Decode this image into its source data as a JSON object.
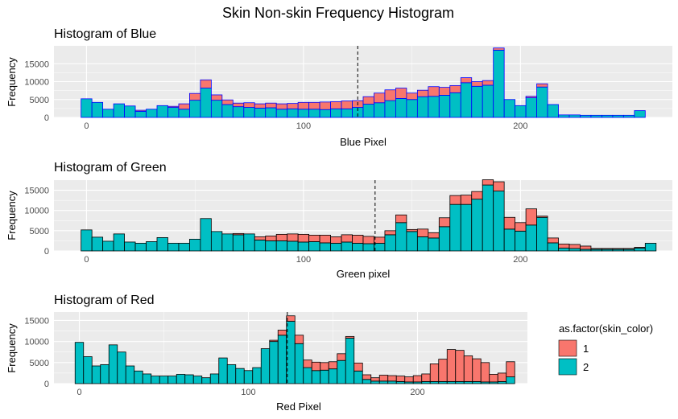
{
  "title": "Skin Non-skin Frequency Histogram",
  "colors": {
    "class1": "#F8766D",
    "class2": "#00BFC4",
    "panel_bg": "#EBEBEB",
    "grid": "#FFFFFF"
  },
  "legend": {
    "title": "as.factor(skin_color)",
    "items": [
      {
        "label": "1",
        "color": "#F8766D"
      },
      {
        "label": "2",
        "color": "#00BFC4"
      }
    ]
  },
  "chart_data": [
    {
      "type": "bar",
      "stacked": true,
      "title": "Histogram of Blue",
      "xlabel": "Blue Pixel",
      "ylabel": "Frequency",
      "bin_width": 5,
      "xlim": [
        -15,
        270
      ],
      "ylim": [
        0,
        20000
      ],
      "x_ticks": [
        0,
        100,
        200
      ],
      "y_ticks": [
        0,
        5000,
        10000,
        15000
      ],
      "bar_outline": "#0000FF",
      "vline": 125,
      "bins": [
        0,
        5,
        10,
        15,
        20,
        25,
        30,
        35,
        40,
        45,
        50,
        55,
        60,
        65,
        70,
        75,
        80,
        85,
        90,
        95,
        100,
        105,
        110,
        115,
        120,
        125,
        130,
        135,
        140,
        145,
        150,
        155,
        160,
        165,
        170,
        175,
        180,
        185,
        190,
        195,
        200,
        205,
        210,
        215,
        220,
        225,
        230,
        235,
        240,
        245,
        250,
        255
      ],
      "series": [
        {
          "name": "2",
          "values": [
            5200,
            4200,
            2300,
            3800,
            3200,
            1700,
            2300,
            3300,
            2800,
            2300,
            4800,
            8200,
            4800,
            3600,
            3000,
            2800,
            2600,
            2700,
            2300,
            2400,
            2300,
            2300,
            2200,
            2400,
            2400,
            2800,
            3700,
            4100,
            4700,
            5300,
            5000,
            5800,
            5900,
            6200,
            6900,
            9700,
            8700,
            9000,
            18800,
            5000,
            3300,
            5500,
            8500,
            3600,
            700,
            700,
            600,
            600,
            600,
            600,
            600,
            1900
          ]
        },
        {
          "name": "1",
          "values": [
            0,
            0,
            0,
            0,
            0,
            300,
            0,
            0,
            300,
            1500,
            1900,
            2300,
            1500,
            1300,
            1000,
            1300,
            1200,
            1300,
            1500,
            1500,
            1900,
            1900,
            2100,
            2000,
            2200,
            1900,
            2100,
            2700,
            3000,
            2900,
            1800,
            1800,
            2700,
            2200,
            2000,
            1400,
            1300,
            1300,
            600,
            0,
            0,
            400,
            900,
            0,
            0,
            0,
            0,
            0,
            0,
            0,
            0,
            0
          ]
        }
      ]
    },
    {
      "type": "bar",
      "stacked": true,
      "title": "Histogram of Green",
      "xlabel": "Green pixel",
      "ylabel": "Frequency",
      "bin_width": 5,
      "xlim": [
        -15,
        270
      ],
      "ylim": [
        0,
        17500
      ],
      "x_ticks": [
        0,
        100,
        200
      ],
      "y_ticks": [
        0,
        5000,
        10000,
        15000
      ],
      "bar_outline": "#000000",
      "vline": 133,
      "bins": [
        0,
        5,
        10,
        15,
        20,
        25,
        30,
        35,
        40,
        45,
        50,
        55,
        60,
        65,
        70,
        75,
        80,
        85,
        90,
        95,
        100,
        105,
        110,
        115,
        120,
        125,
        130,
        135,
        140,
        145,
        150,
        155,
        160,
        165,
        170,
        175,
        180,
        185,
        190,
        195,
        200,
        205,
        210,
        215,
        220,
        225,
        230,
        235,
        240,
        245,
        250,
        255,
        260
      ],
      "series": [
        {
          "name": "2",
          "values": [
            5200,
            3400,
            2400,
            4200,
            2200,
            1900,
            2300,
            3300,
            1900,
            1900,
            2900,
            8000,
            4800,
            4200,
            4000,
            4200,
            2700,
            2500,
            2500,
            2400,
            2200,
            2300,
            2000,
            1900,
            2200,
            1900,
            1800,
            1900,
            4000,
            7000,
            4800,
            3500,
            3200,
            6000,
            11500,
            11500,
            12800,
            16300,
            14800,
            5400,
            4900,
            6400,
            8300,
            2000,
            700,
            600,
            400,
            400,
            400,
            400,
            400,
            700,
            1900
          ]
        },
        {
          "name": "1",
          "values": [
            0,
            0,
            0,
            0,
            0,
            0,
            0,
            0,
            0,
            0,
            0,
            0,
            0,
            0,
            300,
            0,
            800,
            1200,
            1600,
            1800,
            1900,
            1600,
            1900,
            1600,
            1800,
            2000,
            1800,
            1500,
            1000,
            1900,
            500,
            1900,
            1300,
            2200,
            2200,
            2300,
            1900,
            1300,
            2300,
            2900,
            2100,
            4000,
            300,
            1200,
            1000,
            1000,
            800,
            200,
            200,
            200,
            200,
            200,
            0
          ]
        }
      ]
    },
    {
      "type": "bar",
      "stacked": true,
      "title": "Histogram of Red",
      "xlabel": "Red Pixel",
      "ylabel": "Frequency",
      "bin_width": 5,
      "xlim": [
        -15,
        265
      ],
      "ylim": [
        0,
        17000
      ],
      "x_ticks": [
        0,
        100,
        200
      ],
      "y_ticks": [
        0,
        5000,
        10000,
        15000
      ],
      "bar_outline": "#000000",
      "vline": 123,
      "bins": [
        0,
        5,
        10,
        15,
        20,
        25,
        30,
        35,
        40,
        45,
        50,
        55,
        60,
        65,
        70,
        75,
        80,
        85,
        90,
        95,
        100,
        105,
        110,
        115,
        120,
        125,
        130,
        135,
        140,
        145,
        150,
        155,
        160,
        165,
        170,
        175,
        180,
        185,
        190,
        195,
        200,
        205,
        210,
        215,
        220,
        225,
        230,
        235,
        240,
        245,
        250,
        255
      ],
      "series": [
        {
          "name": "2",
          "values": [
            9800,
            6400,
            4200,
            4500,
            9200,
            7500,
            4200,
            3000,
            2300,
            1800,
            1800,
            1800,
            2200,
            2100,
            1800,
            1400,
            2300,
            6100,
            4500,
            3600,
            3100,
            3800,
            8300,
            10000,
            11500,
            14800,
            9500,
            3800,
            3100,
            3200,
            3500,
            5500,
            10800,
            3000,
            1000,
            600,
            600,
            600,
            500,
            400,
            400,
            500,
            500,
            500,
            500,
            500,
            500,
            500,
            400,
            400,
            500,
            1600
          ]
        },
        {
          "name": "1",
          "values": [
            0,
            0,
            0,
            0,
            0,
            0,
            0,
            0,
            0,
            0,
            0,
            0,
            0,
            0,
            0,
            0,
            0,
            0,
            0,
            0,
            0,
            0,
            0,
            300,
            1200,
            1300,
            2000,
            1800,
            2000,
            1800,
            1700,
            1600,
            400,
            1900,
            1100,
            800,
            1400,
            1300,
            1300,
            1200,
            1500,
            1800,
            4200,
            5300,
            7600,
            7400,
            6100,
            5400,
            4600,
            1800,
            2000,
            3600
          ]
        }
      ]
    }
  ]
}
